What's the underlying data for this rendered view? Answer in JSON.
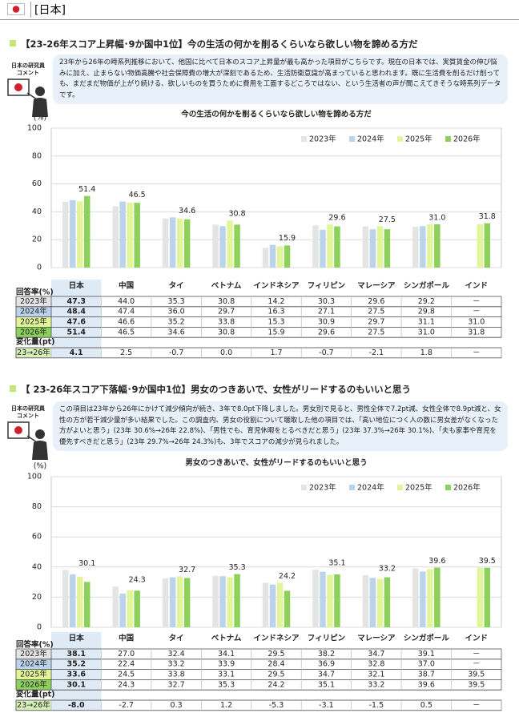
{
  "header": {
    "title": "[日本]"
  },
  "sections": [
    {
      "heading": "【23-26年スコア上昇幅･9か国中1位】今の生活の何かを削るくらいなら欲しい物を諦める方だ",
      "comment_label": [
        "日本の研究員",
        "コメント"
      ],
      "comment": "23年から26年の時系列推移において、他国に比べて日本のスコア上昇量が最も高かった項目がこちらです。現在の日本では、実質賃金の伸び悩みに加え、止まらない物価高騰や社会保障費の増大が深刻であるため、生活防衛意識が高まっていると思われます。既に生活費を削るだけ削っても、まだまだ物価が上がり続ける、欲しいものを買うために費用を工面するどころではない、という生活者の声が聞こえてきそうな時系列データです。"
    },
    {
      "heading": "【 23-26年スコア下落幅･9か国中1位】男女のつきあいで、女性がリードするのもいいと思う",
      "comment_label": [
        "日本の研究員",
        "コメント"
      ],
      "comment": "この項目は23年から26年にかけて減少傾向が続き、3年で8.0pt下降しました。男女別で見ると、男性全体で7.2pt減、女性全体で8.9pt減と、女性の方が若干減少量が多い結果でした。この調査内、男女の役割について聴取した他の項目では、「高い地位につく人の数に男女差がなくなった方がよいと思う」(23年 30.6%→26年 22.8%)、「男性でも、育児休暇をとるべきだと思う」(23年 37.3%→26年 30.1%)、「夫も家事や育児を優先すべきだと思う」(23年 29.7%→26年 24.3%)も、3年でスコアの減少が見られました。"
    }
  ],
  "chart_data": [
    {
      "type": "bar",
      "title": "今の生活の何かを削るくらいなら欲しい物を諦める方だ",
      "y_unit": "(%)",
      "table_label": "回答率(%)",
      "change_label": "変化量(pt)",
      "change_row_label": "23→26年",
      "categories": [
        "日本",
        "中国",
        "タイ",
        "ベトナム",
        "インドネシア",
        "フィリピン",
        "マレーシア",
        "シンガポール",
        "インド"
      ],
      "series": [
        {
          "name": "2023年",
          "color": "#e4e4e4",
          "values": [
            47.3,
            44.0,
            35.3,
            30.8,
            14.2,
            30.3,
            29.6,
            29.2,
            null
          ],
          "value_labels": [
            "47.3",
            "44.0",
            "35.3",
            "30.8",
            "14.2",
            "30.3",
            "29.6",
            "29.2",
            "－"
          ]
        },
        {
          "name": "2024年",
          "color": "#bcd3ec",
          "values": [
            48.4,
            47.4,
            36.0,
            29.7,
            16.3,
            27.1,
            27.5,
            29.8,
            null
          ],
          "value_labels": [
            "48.4",
            "47.4",
            "36.0",
            "29.7",
            "16.3",
            "27.1",
            "27.5",
            "29.8",
            "－"
          ]
        },
        {
          "name": "2025年",
          "color": "#e3f59a",
          "values": [
            47.6,
            46.6,
            35.2,
            33.8,
            15.3,
            30.9,
            29.7,
            31.1,
            31.0
          ],
          "value_labels": [
            "47.6",
            "46.6",
            "35.2",
            "33.8",
            "15.3",
            "30.9",
            "29.7",
            "31.1",
            "31.0"
          ]
        },
        {
          "name": "2026年",
          "color": "#8dd05b",
          "values": [
            51.4,
            46.5,
            34.6,
            30.8,
            15.9,
            29.6,
            27.5,
            31.0,
            31.8
          ],
          "value_labels": [
            "51.4",
            "46.5",
            "34.6",
            "30.8",
            "15.9",
            "29.6",
            "27.5",
            "31.0",
            "31.8"
          ]
        }
      ],
      "change": [
        4.1,
        2.5,
        -0.7,
        0.0,
        1.7,
        -0.7,
        -2.1,
        1.8,
        null
      ],
      "change_labels": [
        "4.1",
        "2.5",
        "-0.7",
        "0.0",
        "1.7",
        "-0.7",
        "-2.1",
        "1.8",
        "－"
      ],
      "ylim": [
        0,
        100
      ],
      "yticks": [
        0,
        20,
        40,
        60,
        80,
        100
      ],
      "grid": true,
      "legend": "top-right"
    },
    {
      "type": "bar",
      "title": "男女のつきあいで、女性がリードするのもいいと思う",
      "y_unit": "(%)",
      "table_label": "回答率(%)",
      "change_label": "変化量(pt)",
      "change_row_label": "23→26年",
      "categories": [
        "日本",
        "中国",
        "タイ",
        "ベトナム",
        "インドネシア",
        "フィリピン",
        "マレーシア",
        "シンガポール",
        "インド"
      ],
      "series": [
        {
          "name": "2023年",
          "color": "#e4e4e4",
          "values": [
            38.1,
            27.0,
            32.4,
            34.1,
            29.5,
            38.2,
            34.7,
            39.1,
            null
          ],
          "value_labels": [
            "38.1",
            "27.0",
            "32.4",
            "34.1",
            "29.5",
            "38.2",
            "34.7",
            "39.1",
            "－"
          ]
        },
        {
          "name": "2024年",
          "color": "#bcd3ec",
          "values": [
            35.2,
            22.4,
            33.2,
            33.9,
            28.4,
            36.9,
            32.8,
            37.0,
            null
          ],
          "value_labels": [
            "35.2",
            "22.4",
            "33.2",
            "33.9",
            "28.4",
            "36.9",
            "32.8",
            "37.0",
            "－"
          ]
        },
        {
          "name": "2025年",
          "color": "#e3f59a",
          "values": [
            33.6,
            24.5,
            33.8,
            33.1,
            29.5,
            34.7,
            32.1,
            38.7,
            39.5
          ],
          "value_labels": [
            "33.6",
            "24.5",
            "33.8",
            "33.1",
            "29.5",
            "34.7",
            "32.1",
            "38.7",
            "39.5"
          ]
        },
        {
          "name": "2026年",
          "color": "#8dd05b",
          "values": [
            30.1,
            24.3,
            32.7,
            35.3,
            24.2,
            35.1,
            33.2,
            39.6,
            39.5
          ],
          "value_labels": [
            "30.1",
            "24.3",
            "32.7",
            "35.3",
            "24.2",
            "35.1",
            "33.2",
            "39.6",
            "39.5"
          ]
        }
      ],
      "change": [
        -8.0,
        -2.7,
        0.3,
        1.2,
        -5.3,
        -3.1,
        -1.5,
        0.5,
        null
      ],
      "change_labels": [
        "-8.0",
        "-2.7",
        "0.3",
        "1.2",
        "-5.3",
        "-3.1",
        "-1.5",
        "0.5",
        "－"
      ],
      "ylim": [
        0,
        100
      ],
      "yticks": [
        0,
        20,
        40,
        60,
        80,
        100
      ],
      "grid": true,
      "legend": "top-right"
    }
  ]
}
